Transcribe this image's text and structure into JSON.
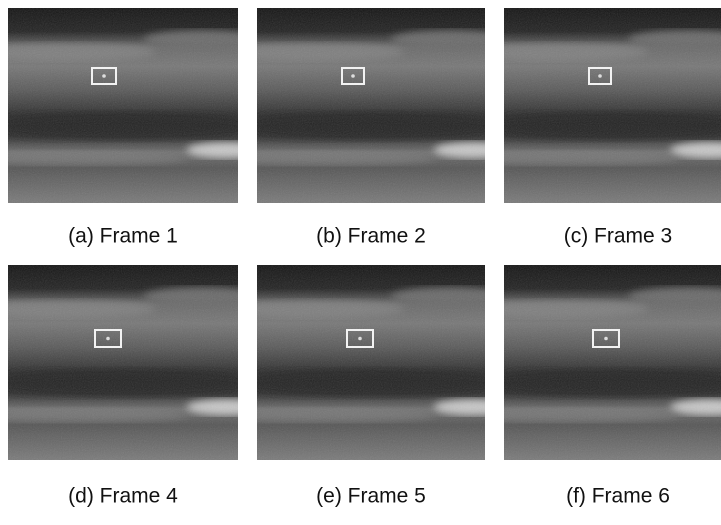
{
  "panels": [
    {
      "caption": "(a) Frame 1"
    },
    {
      "caption": "(b) Frame 2"
    },
    {
      "caption": "(c) Frame 3"
    },
    {
      "caption": "(d) Frame 4"
    },
    {
      "caption": "(e) Frame 5"
    },
    {
      "caption": "(f) Frame 6"
    }
  ]
}
